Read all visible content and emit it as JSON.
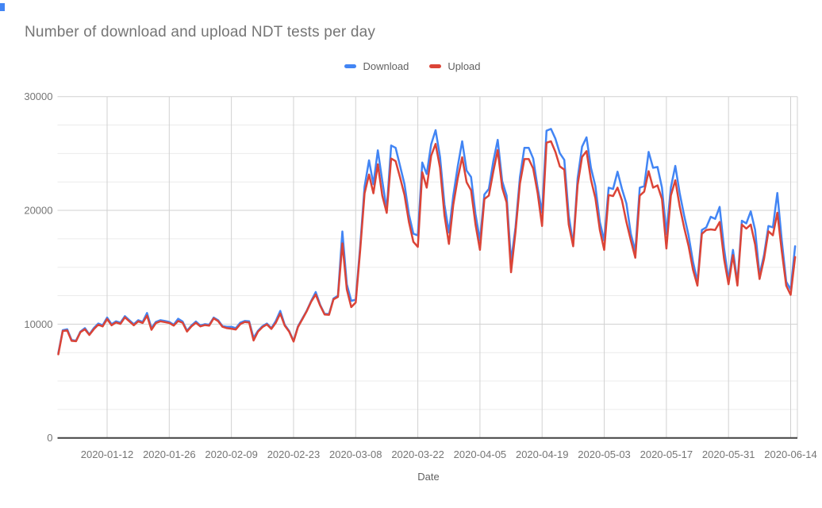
{
  "chart_data": {
    "type": "line",
    "title": "Number of download and upload NDT tests per day",
    "xlabel": "Date",
    "ylabel": "",
    "ylim": [
      0,
      30000
    ],
    "y_major_step": 10000,
    "y_minor_step": 2500,
    "grid": "on",
    "legend_position": "top-center",
    "start_date": "2020-01-01",
    "end_date": "2020-06-15",
    "y_ticks": [
      0,
      10000,
      20000,
      30000
    ],
    "x_ticks": [
      {
        "label": "2020-01-12",
        "index": 11
      },
      {
        "label": "2020-01-26",
        "index": 25
      },
      {
        "label": "2020-02-09",
        "index": 39
      },
      {
        "label": "2020-02-23",
        "index": 53
      },
      {
        "label": "2020-03-08",
        "index": 67
      },
      {
        "label": "2020-03-22",
        "index": 81
      },
      {
        "label": "2020-04-05",
        "index": 95
      },
      {
        "label": "2020-04-19",
        "index": 109
      },
      {
        "label": "2020-05-03",
        "index": 123
      },
      {
        "label": "2020-05-17",
        "index": 137
      },
      {
        "label": "2020-05-31",
        "index": 151
      },
      {
        "label": "2020-06-14",
        "index": 165
      }
    ],
    "colors": {
      "download": "#4285f4",
      "upload": "#db4437",
      "minor_grid": "#ebebeb",
      "major_grid": "#d1d1d1",
      "baseline": "#424242",
      "tick_text": "#757575"
    },
    "series": [
      {
        "name": "Download",
        "color": "#4285f4",
        "values": [
          7450,
          9470,
          9550,
          8600,
          8550,
          9350,
          9650,
          9100,
          9650,
          10050,
          9900,
          10580,
          10000,
          10250,
          10120,
          10700,
          10350,
          10000,
          10350,
          10190,
          10980,
          9650,
          10200,
          10350,
          10280,
          10190,
          9950,
          10470,
          10230,
          9420,
          9880,
          10230,
          9880,
          10000,
          9950,
          10580,
          10350,
          9820,
          9770,
          9770,
          9650,
          10120,
          10280,
          10250,
          8790,
          9420,
          9820,
          10050,
          9650,
          10280,
          11160,
          9950,
          9400,
          8520,
          9800,
          10500,
          11200,
          12050,
          12820,
          11700,
          10900,
          10900,
          12250,
          12500,
          18150,
          13500,
          12050,
          12150,
          16800,
          22100,
          24400,
          22300,
          25280,
          22600,
          20050,
          25700,
          25500,
          23900,
          22300,
          19650,
          17950,
          17800,
          24200,
          23200,
          25800,
          27050,
          24700,
          20500,
          18050,
          21300,
          23860,
          26070,
          23500,
          22930,
          19670,
          17350,
          21400,
          21880,
          24300,
          26200,
          22580,
          21300,
          15500,
          18500,
          22930,
          25490,
          25490,
          24560,
          22000,
          19790,
          27000,
          27160,
          26300,
          25020,
          24440,
          19560,
          17000,
          22810,
          25600,
          26420,
          23740,
          22120,
          18980,
          17350,
          22000,
          21880,
          23400,
          21880,
          20600,
          17930,
          16420,
          22000,
          22120,
          25140,
          23740,
          23810,
          22000,
          17930,
          22000,
          23910,
          21530,
          19560,
          17810,
          15490,
          13740,
          18280,
          18510,
          19440,
          19255,
          20300,
          16650,
          13860,
          16530,
          13630,
          19090,
          18860,
          19910,
          18280,
          14320,
          16070,
          18630,
          18510,
          21530,
          17350,
          13740,
          13040,
          16850
        ]
      },
      {
        "name": "Upload",
        "color": "#db4437",
        "values": [
          7350,
          9400,
          9450,
          8530,
          8500,
          9300,
          9550,
          9050,
          9550,
          9950,
          9800,
          10450,
          9900,
          10150,
          10020,
          10600,
          10250,
          9900,
          10250,
          10100,
          10750,
          9500,
          10100,
          10250,
          10180,
          10100,
          9870,
          10280,
          10130,
          9350,
          9800,
          10120,
          9800,
          9920,
          9870,
          10510,
          10260,
          9770,
          9650,
          9600,
          9530,
          10000,
          10190,
          10150,
          8560,
          9350,
          9740,
          9980,
          9580,
          10120,
          10930,
          9880,
          9350,
          8470,
          9740,
          10440,
          11150,
          11990,
          12600,
          11630,
          10850,
          10820,
          12180,
          12400,
          17100,
          13050,
          11500,
          11900,
          16450,
          21500,
          23150,
          21500,
          24050,
          21300,
          19780,
          24560,
          24330,
          22900,
          21350,
          18980,
          17230,
          16790,
          23350,
          22000,
          24800,
          25840,
          23740,
          19560,
          17050,
          20500,
          22810,
          24670,
          22470,
          21770,
          18750,
          16530,
          21000,
          21300,
          23400,
          25300,
          22000,
          20700,
          14560,
          18100,
          22350,
          24510,
          24510,
          23670,
          21530,
          18630,
          25950,
          26070,
          25140,
          23860,
          23580,
          18750,
          16840,
          22230,
          24700,
          25210,
          22700,
          21070,
          18280,
          16530,
          21350,
          21260,
          22000,
          20880,
          18980,
          17350,
          15840,
          21300,
          21650,
          23440,
          22000,
          22190,
          21000,
          16650,
          21300,
          22650,
          20370,
          18510,
          16880,
          14790,
          13390,
          17930,
          18280,
          18330,
          18280,
          18980,
          15720,
          13510,
          16070,
          13390,
          18750,
          18400,
          18750,
          17000,
          13970,
          15720,
          18160,
          17810,
          19790,
          16420,
          13390,
          12580,
          15900
        ]
      }
    ]
  }
}
